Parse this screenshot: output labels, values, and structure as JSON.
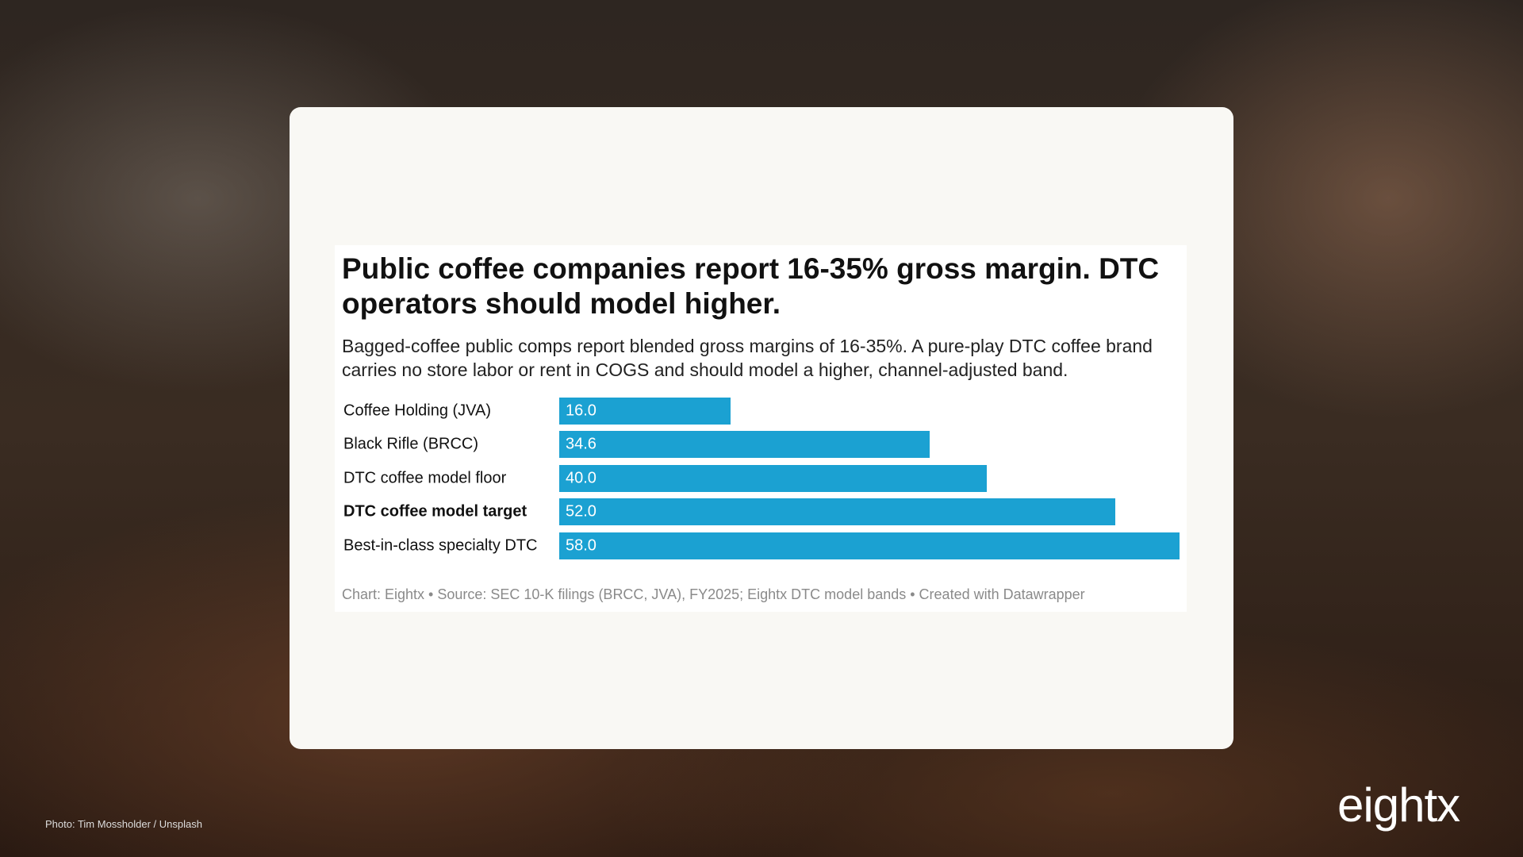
{
  "chart_data": {
    "type": "bar",
    "orientation": "horizontal",
    "title": "Public coffee companies report 16-35% gross margin. DTC operators should model higher.",
    "subtitle": "Bagged-coffee public comps report blended gross margins of 16-35%. A pure-play DTC coffee brand carries no store labor or rent in COGS and should model a higher, channel-adjusted band.",
    "categories": [
      "Coffee Holding (JVA)",
      "Black Rifle (BRCC)",
      "DTC coffee model floor",
      "DTC coffee model target",
      "Best-in-class specialty DTC"
    ],
    "values": [
      16,
      34.6,
      40,
      52,
      58
    ],
    "value_labels": [
      "16.0",
      "34.6",
      "40.0",
      "52.0",
      "58.0"
    ],
    "color": "#1ba1d2",
    "bold_category_index": 3,
    "source": "Chart: Eightx • Source: SEC 10-K filings (BRCC, JVA), FY2025; Eightx DTC model bands • Created with Datawrapper"
  },
  "page": {
    "photo_credit": "Photo: Tim Mossholder / Unsplash",
    "logo": "eightx"
  }
}
